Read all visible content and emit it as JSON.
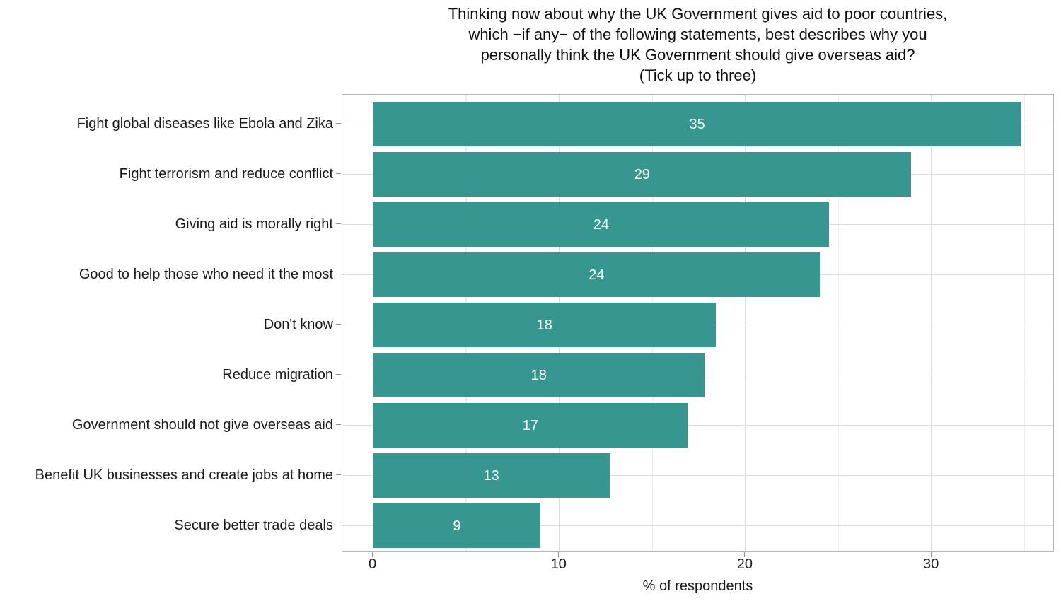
{
  "chart_data": {
    "type": "bar",
    "orientation": "horizontal",
    "title_lines": [
      "Thinking now about why the UK Government gives aid to poor countries,",
      "which −if any− of the following statements, best describes why you",
      "personally think the UK Government should give overseas aid?",
      "(Tick up to three)"
    ],
    "categories": [
      "Fight global diseases like Ebola and Zika",
      "Fight terrorism and reduce conflict",
      "Giving aid is morally right",
      "Good to help those who need it the most",
      "Don't know",
      "Reduce migration",
      "Government should not give overseas aid",
      "Benefit UK businesses and create jobs at home",
      "Secure better trade deals"
    ],
    "values": [
      35,
      29,
      24,
      24,
      18,
      18,
      17,
      13,
      9
    ],
    "bar_lengths": [
      34.8,
      28.9,
      24.5,
      24.0,
      18.4,
      17.8,
      16.9,
      12.7,
      9.0
    ],
    "xlabel": "% of respondents",
    "x_ticks": [
      0,
      10,
      20,
      30
    ],
    "x_minor_ticks": [
      5,
      15,
      25,
      35
    ],
    "xlim": [
      -1.65,
      36.6
    ],
    "grid": "major and minor vertical, major horizontal at category centers",
    "legend": "none",
    "colors": {
      "bar": "#35978f",
      "bar_label": "#ffffff",
      "grid_major": "#dcdcdc",
      "grid_minor": "#ececec",
      "panel_border": "#b4b4b4",
      "tick": "#8c8c8c",
      "text": "#1a1a1a",
      "background": "#ffffff"
    }
  }
}
